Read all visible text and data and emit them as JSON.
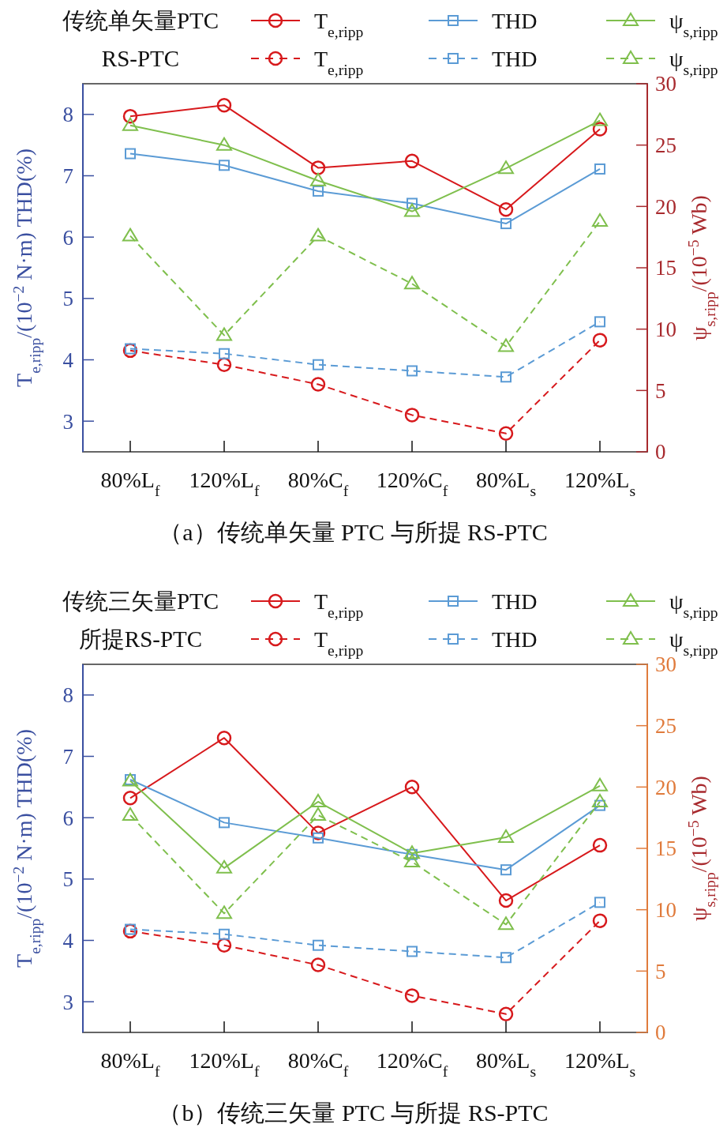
{
  "chart_data": [
    {
      "type": "line",
      "title": "（a）传统单矢量 PTC 与所提 RS-PTC",
      "annotations": [
        "传统单矢量PTC",
        "RS-PTC"
      ],
      "categories": [
        "80%L$_{f}$",
        "120%L$_{f}$",
        "80%C$_{f}$",
        "120%C$_{f}$",
        "80%L$_{s}$",
        "120%L$_{s}$"
      ],
      "ylabel": "T$_{e,ripp}$/(10$^{−2}$ N·m)   THD(%)",
      "y2label": "ψ$_{s,ripp}$/(10$^{−5}$ Wb)",
      "ylim": [
        2.5,
        8.5
      ],
      "yticks": [
        3,
        4,
        5,
        6,
        7,
        8
      ],
      "y2lim": [
        0,
        30
      ],
      "y2ticks": [
        0,
        5,
        10,
        15,
        20,
        25,
        30
      ],
      "legend": "top",
      "series": [
        {
          "name": "T$_{e,ripp}$",
          "color": "#d7191c",
          "line_style": "solid",
          "marker": "circle",
          "values": [
            7.97,
            8.15,
            7.13,
            7.24,
            6.45,
            7.76
          ]
        },
        {
          "name": "THD",
          "color": "#5b9bd5",
          "line_style": "solid",
          "marker": "square",
          "values": [
            7.36,
            7.17,
            6.75,
            6.55,
            6.22,
            7.11
          ]
        },
        {
          "name": "ψ$_{s,ripp}$",
          "color": "#7fbf4d",
          "line_style": "solid",
          "marker": "triangle",
          "axis": "y2",
          "values": [
            26.6,
            25.0,
            22.1,
            19.6,
            23.1,
            27.0
          ]
        },
        {
          "name": "T$_{e,ripp}$",
          "color": "#d7191c",
          "line_style": "dashed",
          "marker": "circle",
          "values": [
            4.15,
            3.92,
            3.6,
            3.1,
            2.8,
            4.32
          ]
        },
        {
          "name": "THD",
          "color": "#5b9bd5",
          "line_style": "dashed",
          "marker": "square",
          "values": [
            4.18,
            4.1,
            3.92,
            3.82,
            3.72,
            4.62
          ]
        },
        {
          "name": "ψ$_{s,ripp}$",
          "color": "#7fbf4d",
          "line_style": "dashed",
          "marker": "triangle",
          "axis": "y2",
          "values": [
            17.6,
            9.5,
            17.6,
            13.7,
            8.6,
            18.8
          ]
        }
      ]
    },
    {
      "type": "line",
      "title": "（b）传统三矢量 PTC 与所提 RS-PTC",
      "annotations": [
        "传统三矢量PTC",
        "所提RS-PTC"
      ],
      "categories": [
        "80%L$_{f}$",
        "120%L$_{f}$",
        "80%C$_{f}$",
        "120%C$_{f}$",
        "80%L$_{s}$",
        "120%L$_{s}$"
      ],
      "ylabel": "T$_{e,ripp}$/(10$^{−2}$ N·m)   THD(%)",
      "y2label": "ψ$_{s,ripp}$/(10$^{−5}$ Wb)",
      "ylim": [
        2.5,
        8.5
      ],
      "yticks": [
        3,
        4,
        5,
        6,
        7,
        8
      ],
      "y2lim": [
        0,
        30
      ],
      "y2ticks": [
        0,
        5,
        10,
        15,
        20,
        25,
        30
      ],
      "legend": "top",
      "series": [
        {
          "name": "T$_{e,ripp}$",
          "color": "#d7191c",
          "line_style": "solid",
          "marker": "circle",
          "values": [
            6.32,
            7.3,
            5.75,
            6.5,
            4.65,
            5.55
          ]
        },
        {
          "name": "THD",
          "color": "#5b9bd5",
          "line_style": "solid",
          "marker": "square",
          "values": [
            6.62,
            5.92,
            5.67,
            5.4,
            5.15,
            6.2
          ]
        },
        {
          "name": "ψ$_{s,ripp}$",
          "color": "#7fbf4d",
          "line_style": "solid",
          "marker": "triangle",
          "axis": "y2",
          "values": [
            20.5,
            13.4,
            18.8,
            14.6,
            15.9,
            20.1
          ]
        },
        {
          "name": "T$_{e,ripp}$",
          "color": "#d7191c",
          "line_style": "dashed",
          "marker": "circle",
          "values": [
            4.15,
            3.92,
            3.6,
            3.1,
            2.8,
            4.32
          ]
        },
        {
          "name": "THD",
          "color": "#5b9bd5",
          "line_style": "dashed",
          "marker": "square",
          "values": [
            4.18,
            4.1,
            3.92,
            3.82,
            3.72,
            4.62
          ]
        },
        {
          "name": "ψ$_{s,ripp}$",
          "color": "#7fbf4d",
          "line_style": "dashed",
          "marker": "triangle",
          "axis": "y2",
          "values": [
            17.7,
            9.7,
            17.7,
            13.9,
            8.8,
            18.8
          ]
        }
      ]
    }
  ]
}
